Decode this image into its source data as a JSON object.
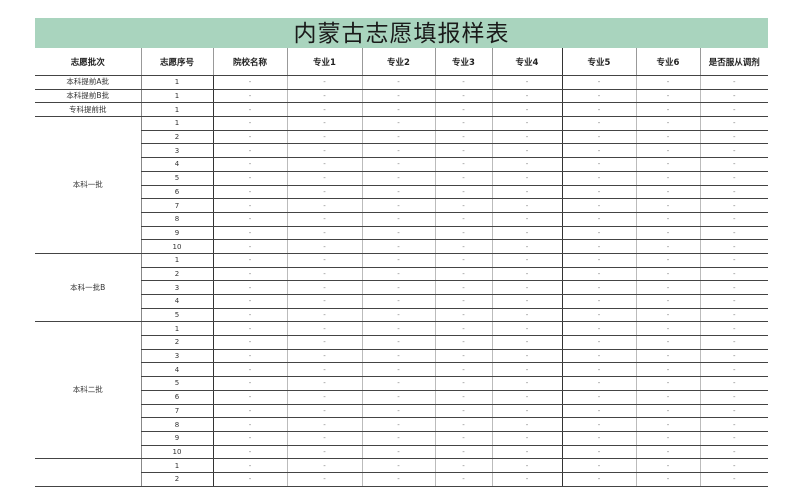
{
  "title": "内蒙古志愿填报样表",
  "headers": [
    "志愿批次",
    "志愿序号",
    "院校名称",
    "专业1",
    "专业2",
    "专业3",
    "专业4",
    "专业5",
    "专业6",
    "是否服从调剂"
  ],
  "empty_cell": "-",
  "groups": [
    {
      "label": "本科提前A批",
      "seqs": [
        "1"
      ]
    },
    {
      "label": "本科提前B批",
      "seqs": [
        "1"
      ]
    },
    {
      "label": "专科提前批",
      "seqs": [
        "1"
      ]
    },
    {
      "label": "本科一批",
      "seqs": [
        "1",
        "2",
        "3",
        "4",
        "5",
        "6",
        "7",
        "8",
        "9",
        "10"
      ]
    },
    {
      "label": "本科一批B",
      "seqs": [
        "1",
        "2",
        "3",
        "4",
        "5"
      ]
    },
    {
      "label": "本科二批",
      "seqs": [
        "1",
        "2",
        "3",
        "4",
        "5",
        "6",
        "7",
        "8",
        "9",
        "10"
      ]
    },
    {
      "label": "",
      "seqs": [
        "1",
        "2"
      ]
    }
  ],
  "colors": {
    "title_band": "#a9d4be"
  }
}
